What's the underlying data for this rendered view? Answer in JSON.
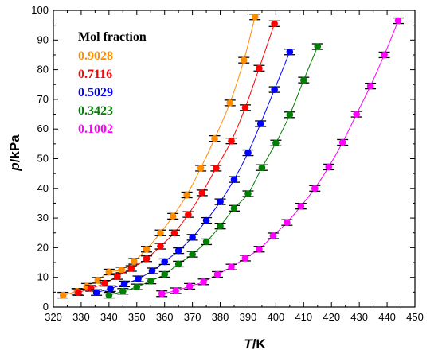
{
  "chart_data": {
    "type": "scatter",
    "xlabel_italic": "T",
    "xlabel_unit": "/K",
    "ylabel_italic": "p",
    "ylabel_unit": "/kPa",
    "xlim": [
      320,
      450
    ],
    "ylim": [
      0,
      100
    ],
    "xticks": [
      320,
      330,
      340,
      350,
      360,
      370,
      380,
      390,
      400,
      410,
      420,
      430,
      440,
      450
    ],
    "yticks": [
      0,
      10,
      20,
      30,
      40,
      50,
      60,
      70,
      80,
      90,
      100
    ],
    "legend_title": "Mol fraction",
    "legend_position": "top-left",
    "series": [
      {
        "name": "0.9028",
        "color": "#ff8c00",
        "x": [
          323.5,
          328.5,
          332.0,
          336.0,
          340.0,
          344.5,
          349.0,
          353.5,
          358.5,
          363.0,
          368.0,
          373.0,
          378.0,
          383.5,
          388.5,
          392.5
        ],
        "y": [
          4.0,
          5.3,
          7.0,
          9.0,
          11.8,
          12.5,
          15.4,
          19.5,
          25.0,
          30.6,
          37.8,
          46.8,
          56.8,
          68.8,
          83.2,
          97.8
        ]
      },
      {
        "name": "0.7116",
        "color": "#ff0000",
        "x": [
          329.0,
          333.5,
          338.5,
          343.0,
          348.0,
          353.5,
          358.5,
          363.5,
          368.5,
          373.5,
          378.5,
          384.0,
          389.0,
          394.0,
          399.5
        ],
        "y": [
          4.9,
          6.3,
          8.0,
          10.3,
          13.0,
          16.3,
          20.5,
          25.0,
          31.2,
          38.5,
          46.8,
          56.0,
          67.2,
          80.5,
          95.5
        ]
      },
      {
        "name": "0.5029",
        "color": "#0000ff",
        "x": [
          335.5,
          340.5,
          345.5,
          350.5,
          355.5,
          360.0,
          365.0,
          370.0,
          375.0,
          380.0,
          385.0,
          390.0,
          394.5,
          399.5,
          405.0
        ],
        "y": [
          4.9,
          6.2,
          7.8,
          9.5,
          12.2,
          15.3,
          19.0,
          23.5,
          29.2,
          35.5,
          43.0,
          52.0,
          61.8,
          73.3,
          86.0
        ]
      },
      {
        "name": "0.3423",
        "color": "#008000",
        "x": [
          340.0,
          345.0,
          350.0,
          355.0,
          360.0,
          365.0,
          370.0,
          375.0,
          380.0,
          385.0,
          390.0,
          395.0,
          400.0,
          405.0,
          410.0,
          415.0
        ],
        "y": [
          4.0,
          5.3,
          6.8,
          8.8,
          11.0,
          14.5,
          17.8,
          22.0,
          27.3,
          33.3,
          38.2,
          47.0,
          55.3,
          64.8,
          76.5,
          87.8
        ]
      },
      {
        "name": "0.1002",
        "color": "#ff00ff",
        "x": [
          359.0,
          364.0,
          369.0,
          374.0,
          379.0,
          384.0,
          389.0,
          394.0,
          399.0,
          404.0,
          409.0,
          414.0,
          419.0,
          424.0,
          429.0,
          434.0,
          439.0,
          444.0
        ],
        "y": [
          4.5,
          5.5,
          7.0,
          8.5,
          11.0,
          13.5,
          16.5,
          19.5,
          24.0,
          28.5,
          34.0,
          40.0,
          47.2,
          55.5,
          65.0,
          74.5,
          85.0,
          96.5
        ]
      }
    ]
  }
}
